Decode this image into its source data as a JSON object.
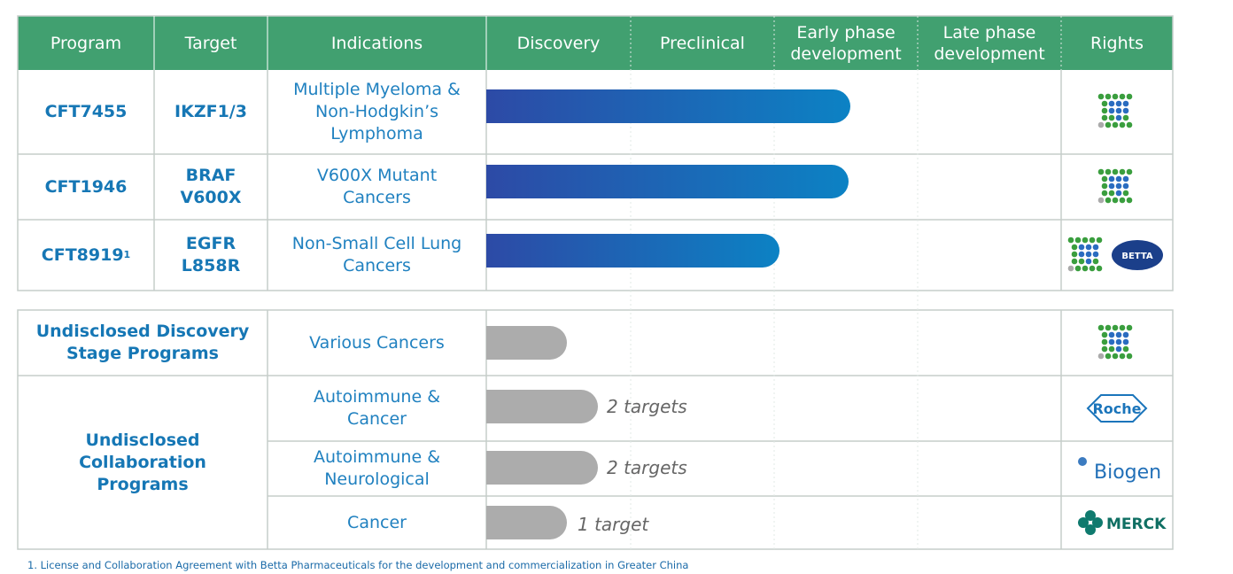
{
  "header": {
    "columns": [
      "Program",
      "Target",
      "Indications",
      "Discovery",
      "Preclinical",
      "Early phase development",
      "Late phase development",
      "Rights"
    ]
  },
  "programs": [
    {
      "program": "CFT7455",
      "target": "IKZF1/3",
      "indication": "Multiple Myeloma & Non-Hodgkin’s Lymphoma"
    },
    {
      "program": "CFT1946",
      "target": "BRAF V600X",
      "indication": "V600X Mutant Cancers"
    },
    {
      "program": "CFT8919",
      "footnote_mark": "1",
      "target": "EGFR L858R",
      "indication": "Non-Small Cell Lung Cancers",
      "partner": "BETTA"
    }
  ],
  "undisclosed": [
    {
      "group": "Undisclosed Discovery Stage Programs",
      "rows": [
        {
          "indication": "Various Cancers"
        }
      ]
    },
    {
      "group": "Undisclosed Collaboration Programs",
      "rows": [
        {
          "indication": "Autoimmune & Cancer",
          "note": "2 targets",
          "partner": "Roche"
        },
        {
          "indication": "Autoimmune & Neurological",
          "note": "2 targets",
          "partner": "Biogen"
        },
        {
          "indication": "Cancer",
          "note": "1 target",
          "partner": "MERCK"
        }
      ]
    }
  ],
  "footnote": "1. License and Collaboration Agreement with Betta Pharmaceuticals for the development and commercialization in Greater China"
}
